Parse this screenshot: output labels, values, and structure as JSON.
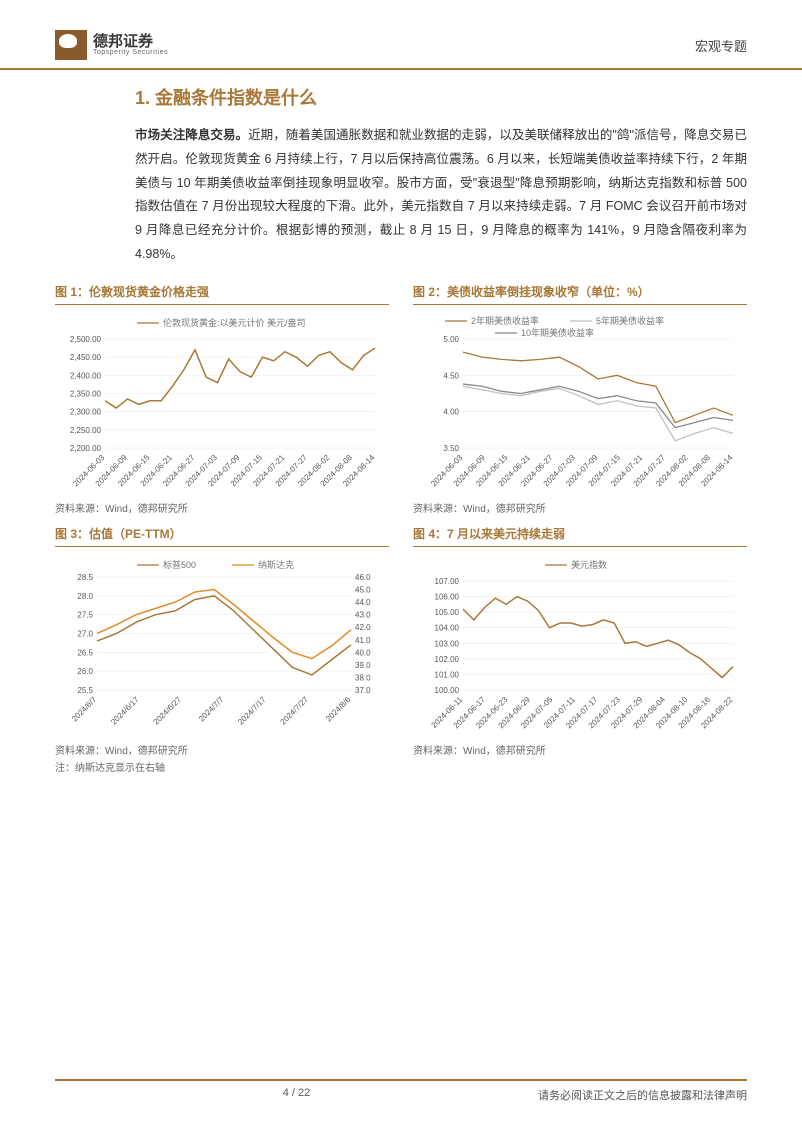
{
  "header": {
    "logo_cn": "德邦证券",
    "logo_en": "Topsperity Securities",
    "right_label": "宏观专题"
  },
  "section": {
    "title": "1. 金融条件指数是什么",
    "paragraph_bold": "市场关注降息交易。",
    "paragraph_rest": "近期，随着美国通胀数据和就业数据的走弱，以及美联储释放出的\"鸽\"派信号，降息交易已然开启。伦敦现货黄金 6 月持续上行，7 月以后保持高位震荡。6 月以来，长短端美债收益率持续下行，2 年期美债与 10 年期美债收益率倒挂现象明显收窄。股市方面，受\"衰退型\"降息预期影响，纳斯达克指数和标普 500 指数估值在 7 月份出现较大程度的下滑。此外，美元指数自 7 月以来持续走弱。7 月 FOMC 会议召开前市场对 9 月降息已经充分计价。根据彭博的预测，截止 8 月 15 日，9 月降息的概率为 141%，9 月隐含隔夜利率为 4.98%。"
  },
  "charts": {
    "c1": {
      "title": "图 1：伦敦现货黄金价格走强",
      "source": "资料来源：Wind，德邦研究所",
      "type": "line",
      "legend": [
        "伦敦现货黄金:以美元计价 美元/盎司"
      ],
      "series_colors": [
        "#a87838"
      ],
      "background_color": "#ffffff",
      "grid_color": "#e8e8e8",
      "ylim": [
        2200,
        2500
      ],
      "ytick_step": 50,
      "yticks": [
        "2,200.00",
        "2,250.00",
        "2,300.00",
        "2,350.00",
        "2,400.00",
        "2,450.00",
        "2,500.00"
      ],
      "xlabels": [
        "2024-06-03",
        "2024-06-09",
        "2024-06-15",
        "2024-06-21",
        "2024-06-27",
        "2024-07-03",
        "2024-07-09",
        "2024-07-15",
        "2024-07-21",
        "2024-07-27",
        "2024-08-02",
        "2024-08-08",
        "2024-08-14"
      ],
      "values": [
        2330,
        2310,
        2335,
        2320,
        2330,
        2330,
        2370,
        2415,
        2470,
        2395,
        2380,
        2445,
        2410,
        2395,
        2450,
        2440,
        2465,
        2450,
        2425,
        2455,
        2465,
        2435,
        2415,
        2455,
        2475
      ],
      "line_width": 1.5
    },
    "c2": {
      "title": "图 2：美债收益率倒挂现象收窄（单位：%）",
      "source": "资料来源：Wind，德邦研究所",
      "type": "line",
      "legend": [
        "2年期美债收益率",
        "5年期美债收益率",
        "10年期美债收益率"
      ],
      "series_colors": [
        "#a87838",
        "#c0c0c0",
        "#888888"
      ],
      "background_color": "#ffffff",
      "grid_color": "#e8e8e8",
      "ylim": [
        3.5,
        5.0
      ],
      "ytick_step": 0.5,
      "yticks": [
        "3.50",
        "4.00",
        "4.50",
        "5.00"
      ],
      "xlabels": [
        "2024-06-03",
        "2024-06-09",
        "2024-06-15",
        "2024-06-21",
        "2024-06-27",
        "2024-07-03",
        "2024-07-09",
        "2024-07-15",
        "2024-07-21",
        "2024-07-27",
        "2024-08-02",
        "2024-08-08",
        "2024-08-14"
      ],
      "series": {
        "s1": [
          4.82,
          4.75,
          4.72,
          4.7,
          4.72,
          4.75,
          4.62,
          4.45,
          4.5,
          4.4,
          4.35,
          3.85,
          3.95,
          4.05,
          3.95
        ],
        "s2": [
          4.35,
          4.3,
          4.25,
          4.22,
          4.28,
          4.32,
          4.22,
          4.1,
          4.15,
          4.08,
          4.05,
          3.6,
          3.7,
          3.78,
          3.7
        ],
        "s3": [
          4.38,
          4.35,
          4.28,
          4.25,
          4.3,
          4.35,
          4.28,
          4.18,
          4.22,
          4.15,
          4.12,
          3.78,
          3.85,
          3.92,
          3.88
        ]
      },
      "line_width": 1.3
    },
    "c3": {
      "title": "图 3：估值（PE-TTM）",
      "source": "资料来源：Wind，德邦研究所",
      "note": "注：纳斯达克显示在右轴",
      "type": "line",
      "legend": [
        "标普500",
        "纳斯达克"
      ],
      "series_colors": [
        "#a87838",
        "#e08a2a"
      ],
      "background_color": "#ffffff",
      "grid_color": "#e8e8e8",
      "ylim_left": [
        25.5,
        28.5
      ],
      "ytick_step_left": 0.5,
      "yticks_left": [
        "25.5",
        "26.0",
        "26.5",
        "27.0",
        "27.5",
        "28.0",
        "28.5"
      ],
      "ylim_right": [
        37.0,
        46.0
      ],
      "ytick_step_right": 1.0,
      "yticks_right": [
        "37.0",
        "38.0",
        "39.0",
        "40.0",
        "41.0",
        "42.0",
        "43.0",
        "44.0",
        "45.0",
        "46.0"
      ],
      "xlabels": [
        "2024/6/7",
        "2024/6/17",
        "2024/6/27",
        "2024/7/7",
        "2024/7/17",
        "2024/7/27",
        "2024/8/6"
      ],
      "series": {
        "sp500": [
          26.8,
          27.0,
          27.3,
          27.5,
          27.6,
          27.9,
          28.0,
          27.6,
          27.1,
          26.6,
          26.1,
          25.9,
          26.3,
          26.7
        ],
        "nasdaq": [
          41.5,
          42.2,
          43.0,
          43.5,
          44.0,
          44.8,
          45.0,
          43.8,
          42.5,
          41.2,
          40.0,
          39.5,
          40.5,
          41.8
        ]
      },
      "line_width": 1.5
    },
    "c4": {
      "title": "图 4：7 月以来美元持续走弱",
      "source": "资料来源：Wind，德邦研究所",
      "type": "line",
      "legend": [
        "美元指数"
      ],
      "series_colors": [
        "#a87838"
      ],
      "background_color": "#ffffff",
      "grid_color": "#e8e8e8",
      "ylim": [
        100.0,
        107.0
      ],
      "ytick_step": 1.0,
      "yticks": [
        "100.00",
        "101.00",
        "102.00",
        "103.00",
        "104.00",
        "105.00",
        "106.00",
        "107.00"
      ],
      "xlabels": [
        "2024-06-11",
        "2024-06-17",
        "2024-06-23",
        "2024-06-29",
        "2024-07-05",
        "2024-07-11",
        "2024-07-17",
        "2024-07-23",
        "2024-07-29",
        "2024-08-04",
        "2024-08-10",
        "2024-08-16",
        "2024-08-22"
      ],
      "values": [
        105.2,
        104.5,
        105.3,
        105.9,
        105.5,
        106.0,
        105.7,
        105.1,
        104.0,
        104.3,
        104.3,
        104.1,
        104.2,
        104.5,
        104.3,
        103.0,
        103.1,
        102.8,
        103.0,
        103.2,
        102.9,
        102.4,
        102.0,
        101.4,
        100.8,
        101.5
      ],
      "line_width": 1.5
    }
  },
  "footer": {
    "page": "4 / 22",
    "disclaimer": "请务必阅读正文之后的信息披露和法律声明"
  }
}
